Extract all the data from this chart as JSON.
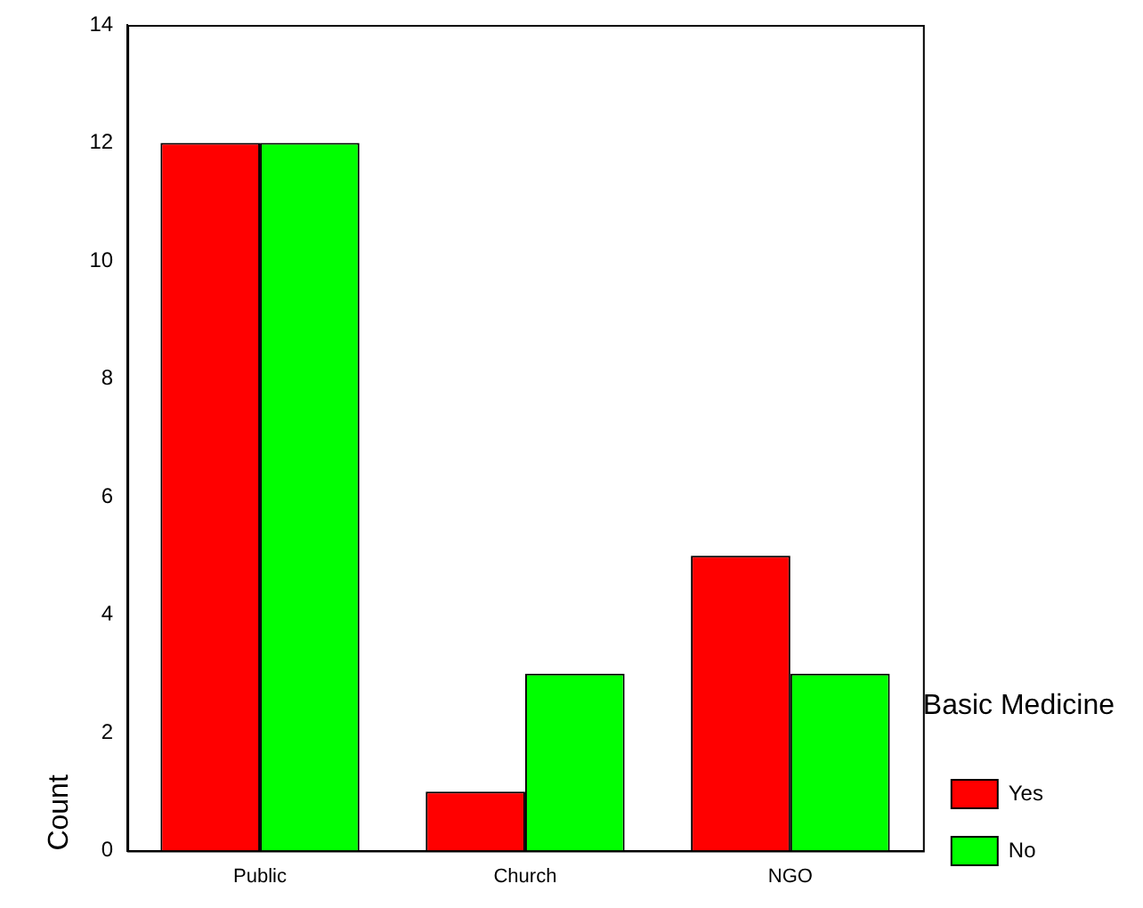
{
  "chart_data": {
    "type": "bar",
    "categories": [
      "Public",
      "Church",
      "NGO"
    ],
    "series": [
      {
        "name": "Yes",
        "color": "#ff0000",
        "values": [
          12,
          1,
          5
        ]
      },
      {
        "name": "No",
        "color": "#00ff00",
        "values": [
          12,
          3,
          3
        ]
      }
    ],
    "ylabel": "Count",
    "legend_title": "Basic Medicine",
    "legend": "bottom right",
    "ylim": [
      0,
      14
    ],
    "yticks": [
      0,
      2,
      4,
      6,
      8,
      10,
      12,
      14
    ],
    "grid": false
  }
}
